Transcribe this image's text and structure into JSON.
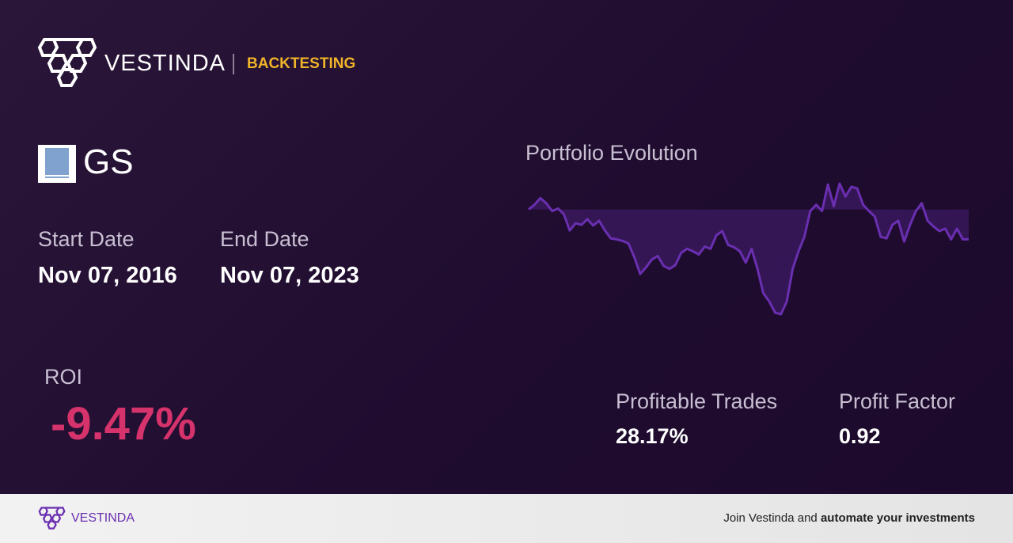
{
  "header": {
    "brand": "VESTINDA",
    "section": "BACKTESTING"
  },
  "ticker": "GS",
  "start_date": {
    "label": "Start Date",
    "value": "Nov 07, 2016"
  },
  "end_date": {
    "label": "End Date",
    "value": "Nov 07, 2023"
  },
  "roi": {
    "label": "ROI",
    "value": "-9.47%"
  },
  "stats": [
    {
      "label": "Profitable Trades",
      "value": "28.17%"
    },
    {
      "label": "Profit Factor",
      "value": "0.92"
    }
  ],
  "chart_data": {
    "type": "line",
    "title": "Portfolio Evolution",
    "color": "#6a2fb0",
    "values": [
      0,
      1.5,
      3.6,
      2.0,
      -0.5,
      0.3,
      -1.5,
      -6.7,
      -4.4,
      -4.9,
      -3.1,
      -5.1,
      -3.6,
      -6.7,
      -9.2,
      -9.5,
      -10.0,
      -10.8,
      -15.1,
      -20.5,
      -18.4,
      -15.9,
      -14.8,
      -17.9,
      -18.9,
      -17.7,
      -13.8,
      -12.5,
      -13.3,
      -14.3,
      -11.8,
      -12.5,
      -8.2,
      -6.9,
      -11.3,
      -12.0,
      -13.3,
      -16.9,
      -12.5,
      -18.9,
      -26.6,
      -29.2,
      -32.8,
      -33.3,
      -29.2,
      -18.9,
      -13.3,
      -8.7,
      -0.5,
      1.5,
      -0.5,
      7.9,
      1.0,
      8.2,
      4.1,
      7.2,
      6.7,
      1.5,
      -0.5,
      -2.3,
      -8.7,
      -9.2,
      -4.9,
      -3.6,
      -10.2,
      -4.9,
      -0.5,
      2.0,
      -3.6,
      -5.4,
      -6.9,
      -6.1,
      -9.5,
      -6.1,
      -9.5,
      -9.47
    ]
  },
  "footer": {
    "brand": "VESTINDA",
    "text": "Join Vestinda and",
    "emphasis": "automate your investments"
  }
}
